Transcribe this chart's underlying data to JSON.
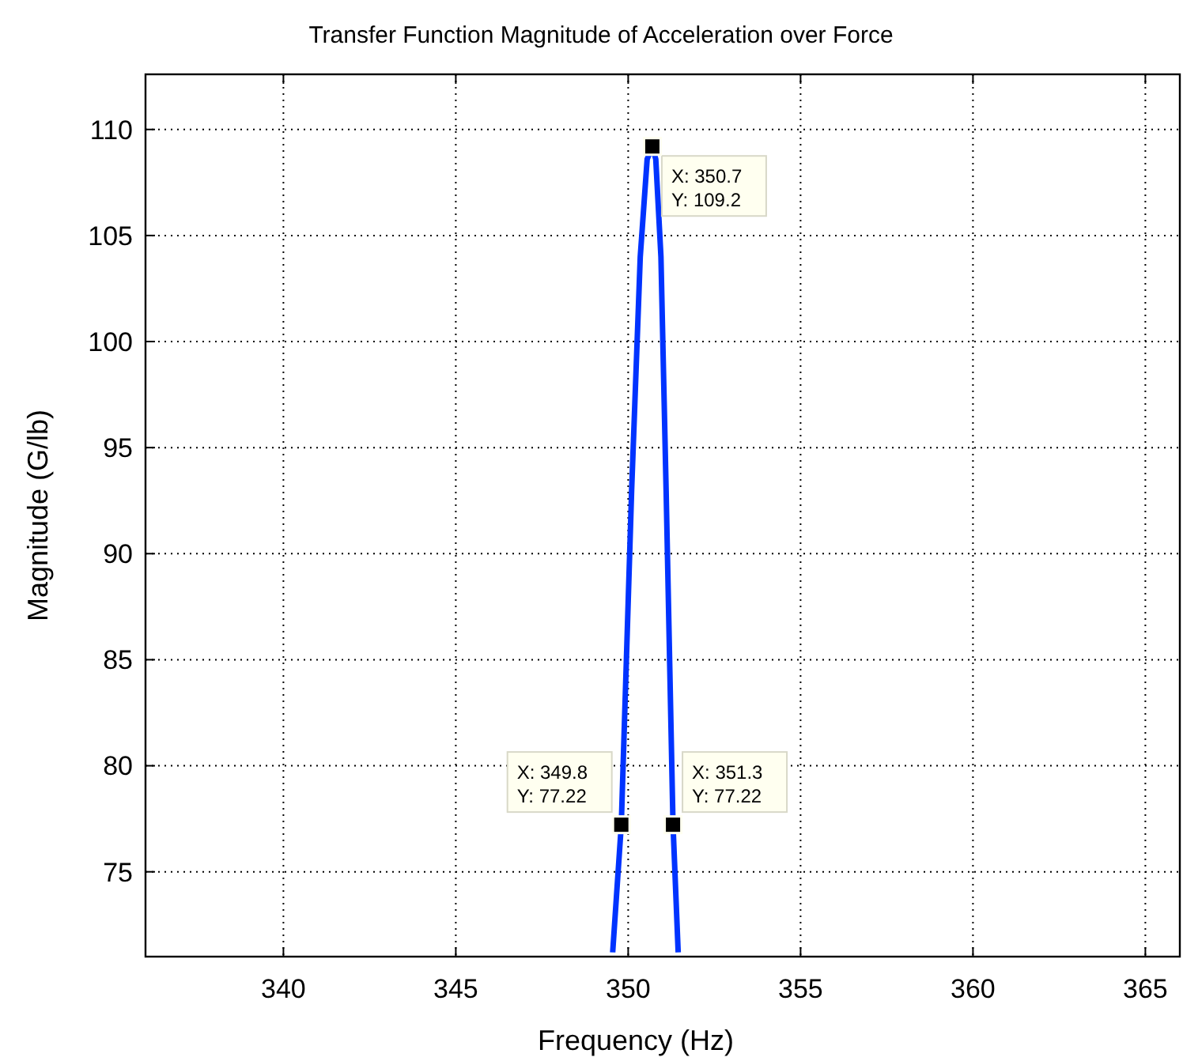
{
  "chart_data": {
    "type": "line",
    "title": "Transfer Function Magnitude of Acceleration over Force",
    "xlabel": "Frequency (Hz)",
    "ylabel": "Magnitude (G/lb)",
    "x": [
      349.55,
      349.8,
      350.1,
      350.35,
      350.55,
      350.7,
      350.8,
      350.95,
      351.1,
      351.3,
      351.45
    ],
    "series": [
      {
        "color": "#0033ff",
        "values": [
          71.2,
          77.22,
          93,
          104,
          108.6,
          109.2,
          108.6,
          104,
          93,
          77.22,
          71.2
        ]
      }
    ],
    "xlim": [
      336,
      366
    ],
    "xticks": [
      340,
      345,
      350,
      355,
      360,
      365
    ],
    "ylim": [
      71,
      112.6
    ],
    "yticks": [
      75,
      80,
      85,
      90,
      95,
      100,
      105,
      110
    ],
    "grid": true,
    "marker": "none",
    "line_style": "solid",
    "annotations": [
      {
        "text": "X: 350.7\nY: 109.2",
        "x": 350.7,
        "y": 109.2
      },
      {
        "text": "X: 349.8\nY: 77.22",
        "x": 349.8,
        "y": 77.22
      },
      {
        "text": "X: 351.3\nY: 77.22",
        "x": 351.3,
        "y": 77.22
      }
    ]
  }
}
